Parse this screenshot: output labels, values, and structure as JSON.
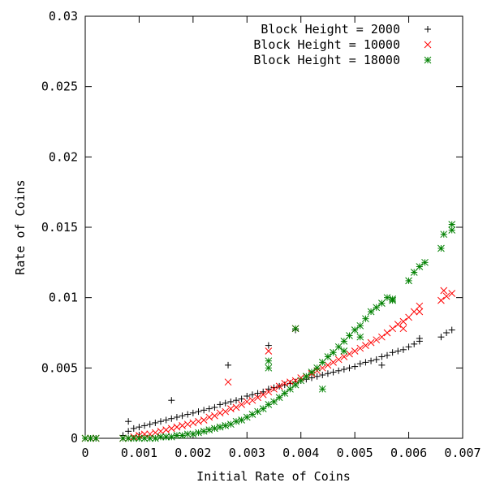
{
  "chart_data": {
    "type": "scatter",
    "title": "",
    "xlabel": "Initial Rate of Coins",
    "ylabel": "Rate of Coins",
    "xlim": [
      0,
      0.007
    ],
    "ylim": [
      0,
      0.03
    ],
    "x_ticks": [
      "0",
      "0.001",
      "0.002",
      "0.003",
      "0.004",
      "0.005",
      "0.006",
      "0.007"
    ],
    "y_ticks": [
      "0",
      "0.005",
      "0.01",
      "0.015",
      "0.02",
      "0.025",
      "0.03"
    ],
    "grid": false,
    "legend_position": "top-right",
    "series": [
      {
        "name": "Block Height = 2000",
        "marker": "plus",
        "color": "#000000",
        "points": [
          [
            0.0,
            0.0
          ],
          [
            0.0001,
            0.0
          ],
          [
            0.0002,
            0.0
          ],
          [
            0.0007,
            0.0002
          ],
          [
            0.0008,
            0.0005
          ],
          [
            0.0009,
            0.0007
          ],
          [
            0.001,
            0.0008
          ],
          [
            0.0011,
            0.0009
          ],
          [
            0.0012,
            0.001
          ],
          [
            0.0013,
            0.0011
          ],
          [
            0.0014,
            0.0012
          ],
          [
            0.0015,
            0.0013
          ],
          [
            0.0016,
            0.0014
          ],
          [
            0.0017,
            0.0015
          ],
          [
            0.0018,
            0.0016
          ],
          [
            0.0019,
            0.0017
          ],
          [
            0.002,
            0.0018
          ],
          [
            0.0021,
            0.0019
          ],
          [
            0.0022,
            0.002
          ],
          [
            0.0023,
            0.0021
          ],
          [
            0.0024,
            0.0022
          ],
          [
            0.0025,
            0.0024
          ],
          [
            0.0026,
            0.0025
          ],
          [
            0.0027,
            0.0026
          ],
          [
            0.0028,
            0.0027
          ],
          [
            0.0029,
            0.0028
          ],
          [
            0.003,
            0.003
          ],
          [
            0.0031,
            0.0031
          ],
          [
            0.0032,
            0.0032
          ],
          [
            0.0033,
            0.0033
          ],
          [
            0.0034,
            0.0035
          ],
          [
            0.0035,
            0.0036
          ],
          [
            0.0036,
            0.0037
          ],
          [
            0.0037,
            0.0038
          ],
          [
            0.0038,
            0.0039
          ],
          [
            0.0039,
            0.004
          ],
          [
            0.004,
            0.0041
          ],
          [
            0.0041,
            0.0042
          ],
          [
            0.0042,
            0.0043
          ],
          [
            0.0043,
            0.0044
          ],
          [
            0.0044,
            0.0045
          ],
          [
            0.0045,
            0.0046
          ],
          [
            0.0046,
            0.0047
          ],
          [
            0.0047,
            0.0048
          ],
          [
            0.0048,
            0.0049
          ],
          [
            0.0049,
            0.005
          ],
          [
            0.005,
            0.0051
          ],
          [
            0.0051,
            0.0053
          ],
          [
            0.0052,
            0.0054
          ],
          [
            0.0053,
            0.0055
          ],
          [
            0.0054,
            0.0056
          ],
          [
            0.0055,
            0.0058
          ],
          [
            0.0056,
            0.0059
          ],
          [
            0.0057,
            0.0061
          ],
          [
            0.0058,
            0.0062
          ],
          [
            0.0059,
            0.0063
          ],
          [
            0.006,
            0.0065
          ],
          [
            0.0061,
            0.0067
          ],
          [
            0.0062,
            0.0069
          ],
          [
            0.0066,
            0.0072
          ],
          [
            0.0067,
            0.0075
          ],
          [
            0.0068,
            0.0077
          ],
          [
            0.0008,
            0.0012
          ],
          [
            0.0016,
            0.0027
          ],
          [
            0.00265,
            0.0052
          ],
          [
            0.0034,
            0.0066
          ],
          [
            0.0039,
            0.0077
          ],
          [
            0.0055,
            0.0052
          ],
          [
            0.0062,
            0.0071
          ]
        ]
      },
      {
        "name": "Block Height = 10000",
        "marker": "cross",
        "color": "#ff0000",
        "points": [
          [
            0.0,
            0.0
          ],
          [
            0.0001,
            0.0
          ],
          [
            0.0002,
            0.0
          ],
          [
            0.0007,
            0.0
          ],
          [
            0.0008,
            0.0
          ],
          [
            0.0009,
            0.0001
          ],
          [
            0.001,
            0.0002
          ],
          [
            0.0011,
            0.0003
          ],
          [
            0.0012,
            0.0003
          ],
          [
            0.0013,
            0.0004
          ],
          [
            0.0014,
            0.0005
          ],
          [
            0.0015,
            0.0006
          ],
          [
            0.0016,
            0.0007
          ],
          [
            0.0017,
            0.0008
          ],
          [
            0.0018,
            0.0009
          ],
          [
            0.0019,
            0.001
          ],
          [
            0.002,
            0.0011
          ],
          [
            0.0021,
            0.0012
          ],
          [
            0.0022,
            0.0013
          ],
          [
            0.0023,
            0.0015
          ],
          [
            0.0024,
            0.0016
          ],
          [
            0.0025,
            0.0018
          ],
          [
            0.0026,
            0.0019
          ],
          [
            0.0027,
            0.0021
          ],
          [
            0.0028,
            0.0022
          ],
          [
            0.0029,
            0.0024
          ],
          [
            0.003,
            0.0026
          ],
          [
            0.0031,
            0.0027
          ],
          [
            0.0032,
            0.0029
          ],
          [
            0.0033,
            0.0031
          ],
          [
            0.0034,
            0.0033
          ],
          [
            0.0035,
            0.0035
          ],
          [
            0.0036,
            0.0037
          ],
          [
            0.0037,
            0.0039
          ],
          [
            0.0038,
            0.004
          ],
          [
            0.0039,
            0.0041
          ],
          [
            0.004,
            0.0043
          ],
          [
            0.0041,
            0.0044
          ],
          [
            0.0042,
            0.0046
          ],
          [
            0.0043,
            0.0048
          ],
          [
            0.0044,
            0.005
          ],
          [
            0.0045,
            0.0052
          ],
          [
            0.0046,
            0.0054
          ],
          [
            0.0047,
            0.0056
          ],
          [
            0.0048,
            0.0058
          ],
          [
            0.0049,
            0.006
          ],
          [
            0.005,
            0.0062
          ],
          [
            0.0051,
            0.0064
          ],
          [
            0.0052,
            0.0066
          ],
          [
            0.0053,
            0.0068
          ],
          [
            0.0054,
            0.007
          ],
          [
            0.0055,
            0.0072
          ],
          [
            0.0056,
            0.0075
          ],
          [
            0.0057,
            0.0078
          ],
          [
            0.0058,
            0.0081
          ],
          [
            0.0059,
            0.0083
          ],
          [
            0.006,
            0.0086
          ],
          [
            0.0061,
            0.009
          ],
          [
            0.0062,
            0.0094
          ],
          [
            0.0066,
            0.0098
          ],
          [
            0.0067,
            0.0101
          ],
          [
            0.0068,
            0.0103
          ],
          [
            0.00265,
            0.004
          ],
          [
            0.0034,
            0.0062
          ],
          [
            0.0039,
            0.0078
          ],
          [
            0.0059,
            0.0078
          ],
          [
            0.00665,
            0.0105
          ],
          [
            0.0062,
            0.009
          ]
        ]
      },
      {
        "name": "Block Height = 18000",
        "marker": "star",
        "color": "#008000",
        "points": [
          [
            0.0,
            0.0
          ],
          [
            0.0001,
            0.0
          ],
          [
            0.0002,
            0.0
          ],
          [
            0.0007,
            0.0
          ],
          [
            0.0008,
            0.0
          ],
          [
            0.0009,
            0.0
          ],
          [
            0.001,
            0.0
          ],
          [
            0.0011,
            0.0
          ],
          [
            0.0012,
            0.0
          ],
          [
            0.0013,
            0.0
          ],
          [
            0.0014,
            0.0001
          ],
          [
            0.0015,
            0.0001
          ],
          [
            0.0016,
            0.0001
          ],
          [
            0.0017,
            0.0002
          ],
          [
            0.0018,
            0.0002
          ],
          [
            0.0019,
            0.0003
          ],
          [
            0.002,
            0.0003
          ],
          [
            0.0021,
            0.0004
          ],
          [
            0.0022,
            0.0005
          ],
          [
            0.0023,
            0.0006
          ],
          [
            0.0024,
            0.0007
          ],
          [
            0.0025,
            0.0008
          ],
          [
            0.0026,
            0.0009
          ],
          [
            0.0027,
            0.001
          ],
          [
            0.0028,
            0.0012
          ],
          [
            0.0029,
            0.0013
          ],
          [
            0.003,
            0.0015
          ],
          [
            0.0031,
            0.0017
          ],
          [
            0.0032,
            0.0019
          ],
          [
            0.0033,
            0.0021
          ],
          [
            0.0034,
            0.0024
          ],
          [
            0.0035,
            0.0026
          ],
          [
            0.0036,
            0.0029
          ],
          [
            0.0037,
            0.0032
          ],
          [
            0.0038,
            0.0035
          ],
          [
            0.0039,
            0.0038
          ],
          [
            0.004,
            0.0041
          ],
          [
            0.0041,
            0.0044
          ],
          [
            0.0042,
            0.0047
          ],
          [
            0.0043,
            0.005
          ],
          [
            0.0044,
            0.0054
          ],
          [
            0.0045,
            0.0058
          ],
          [
            0.0046,
            0.0061
          ],
          [
            0.0047,
            0.0065
          ],
          [
            0.0048,
            0.0069
          ],
          [
            0.0049,
            0.0073
          ],
          [
            0.005,
            0.0077
          ],
          [
            0.0051,
            0.008
          ],
          [
            0.0052,
            0.0085
          ],
          [
            0.0053,
            0.009
          ],
          [
            0.0054,
            0.0093
          ],
          [
            0.0055,
            0.0096
          ],
          [
            0.0056,
            0.01
          ],
          [
            0.0057,
            0.0098
          ],
          [
            0.006,
            0.0112
          ],
          [
            0.0061,
            0.0118
          ],
          [
            0.0062,
            0.0122
          ],
          [
            0.0063,
            0.0125
          ],
          [
            0.0066,
            0.0135
          ],
          [
            0.00665,
            0.0145
          ],
          [
            0.0068,
            0.0148
          ],
          [
            0.0068,
            0.0152
          ],
          [
            0.0034,
            0.005
          ],
          [
            0.0034,
            0.0055
          ],
          [
            0.0039,
            0.0078
          ],
          [
            0.0044,
            0.0035
          ],
          [
            0.0048,
            0.0062
          ],
          [
            0.0051,
            0.0072
          ],
          [
            0.0057,
            0.0099
          ]
        ]
      }
    ]
  }
}
